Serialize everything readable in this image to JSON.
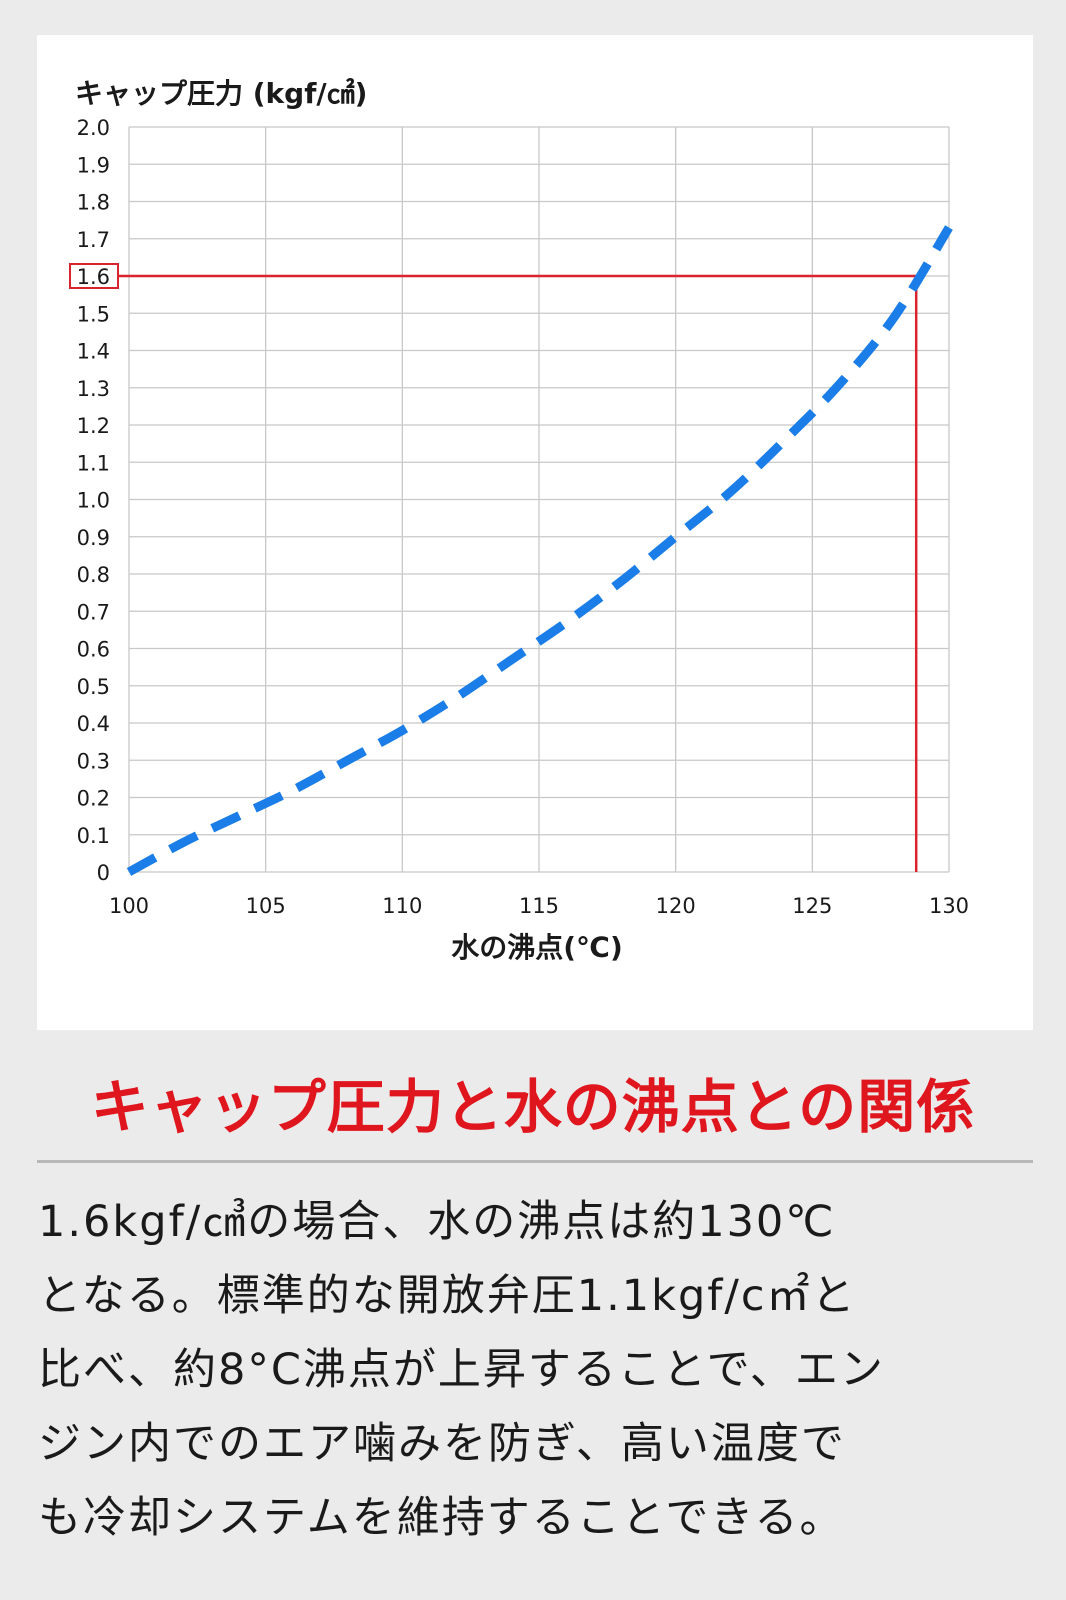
{
  "chart_data": {
    "type": "line",
    "ylabel": "キャップ圧力 (kgf/㎠)",
    "xlabel": "水の沸点(℃)",
    "xlim": [
      100,
      130
    ],
    "ylim": [
      0,
      2.0
    ],
    "x_ticks": [
      "100",
      "105",
      "110",
      "115",
      "120",
      "125",
      "130"
    ],
    "x_tick_values": [
      100,
      105,
      110,
      115,
      120,
      125,
      130
    ],
    "y_ticks": [
      "0",
      "0.1",
      "0.2",
      "0.3",
      "0.4",
      "0.5",
      "0.6",
      "0.7",
      "0.8",
      "0.9",
      "1.0",
      "1.1",
      "1.2",
      "1.3",
      "1.4",
      "1.5",
      "1.6",
      "1.7",
      "1.8",
      "1.9",
      "2.0"
    ],
    "y_tick_values": [
      0,
      0.1,
      0.2,
      0.3,
      0.4,
      0.5,
      0.6,
      0.7,
      0.8,
      0.9,
      1.0,
      1.1,
      1.2,
      1.3,
      1.4,
      1.5,
      1.6,
      1.7,
      1.8,
      1.9,
      2.0
    ],
    "grid": true,
    "series": [
      {
        "style": "dashed",
        "color": "#1a7de8",
        "x": [
          100,
          102,
          104,
          106,
          108,
          110,
          112,
          114,
          116,
          118,
          120,
          122,
          124,
          126,
          128,
          130
        ],
        "y": [
          0.0,
          0.08,
          0.15,
          0.22,
          0.3,
          0.38,
          0.47,
          0.57,
          0.67,
          0.78,
          0.9,
          1.02,
          1.16,
          1.31,
          1.49,
          1.73
        ]
      }
    ],
    "highlight": {
      "color": "#d9232d",
      "y_value": 1.6,
      "x_value": 128.8,
      "y_label": "1.6"
    }
  },
  "caption": {
    "title": "キャップ圧力と水の沸点との関係",
    "lines": [
      "1.6kgf/㎤の場合、水の沸点は約130℃",
      "となる。標準的な開放弁圧1.1kgf/c㎡と",
      "比べ、約8°C沸点が上昇することで、エン",
      "ジン内でのエア噛みを防ぎ、高い温度で",
      "も冷却システムを維持することできる。"
    ]
  }
}
